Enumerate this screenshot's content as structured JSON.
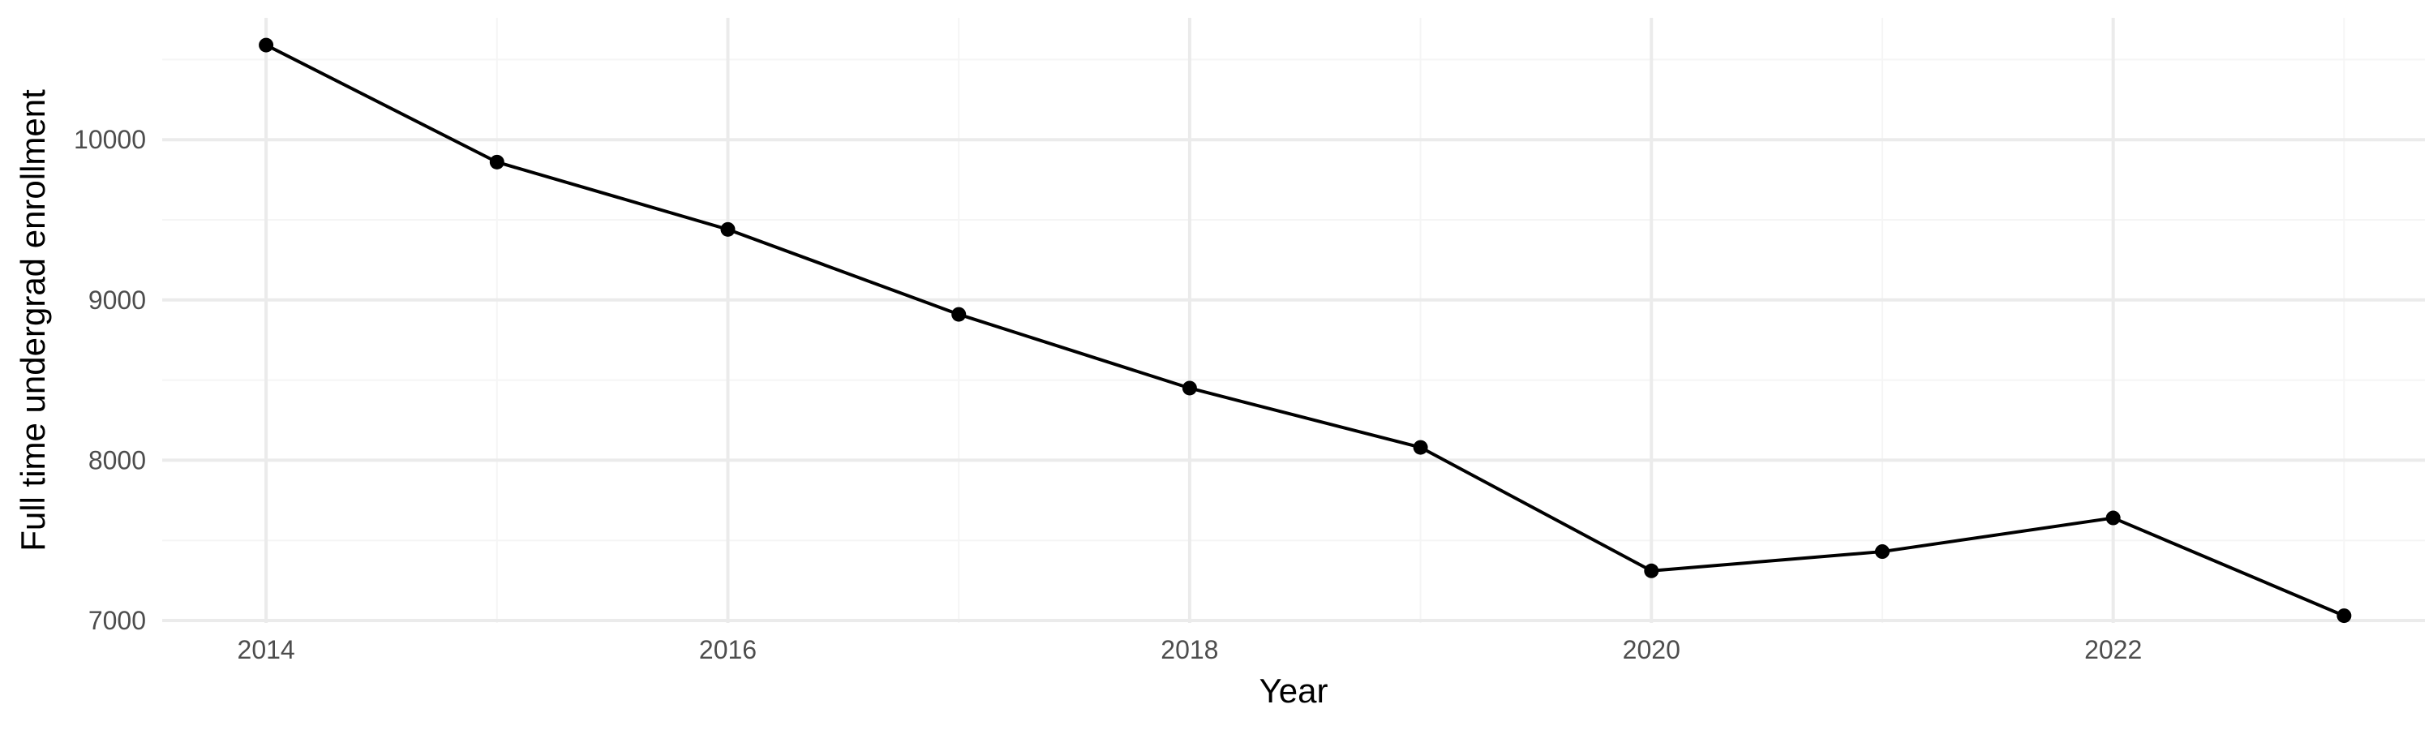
{
  "chart_data": {
    "type": "line",
    "title": "",
    "xlabel": "Year",
    "ylabel": "Full time undergrad enrollment",
    "x": [
      2014,
      2015,
      2016,
      2017,
      2018,
      2019,
      2020,
      2021,
      2022,
      2023
    ],
    "series": [
      {
        "values": [
          10590,
          9860,
          9440,
          8910,
          8450,
          8080,
          7310,
          7430,
          7640,
          7030
        ]
      }
    ],
    "xlim": [
      2013.55,
      2023.35
    ],
    "ylim": [
      6985,
      10760
    ],
    "x_ticks": [
      2014,
      2016,
      2018,
      2020,
      2022
    ],
    "x_minor_ticks": [
      2015,
      2017,
      2019,
      2021,
      2023
    ],
    "y_ticks": [
      7000,
      8000,
      9000,
      10000
    ],
    "y_minor_ticks": [
      7500,
      8500,
      9500,
      10500
    ],
    "x_tick_labels": [
      "2014",
      "2016",
      "2018",
      "2020",
      "2022"
    ],
    "y_tick_labels": [
      "7000",
      "8000",
      "9000",
      "10000"
    ],
    "grid": true,
    "legend": "none",
    "colors": {
      "line": "#000000",
      "grid_major": "#ebebeb",
      "grid_minor": "#f5f5f5",
      "tick_text": "#4d4d4d"
    }
  }
}
